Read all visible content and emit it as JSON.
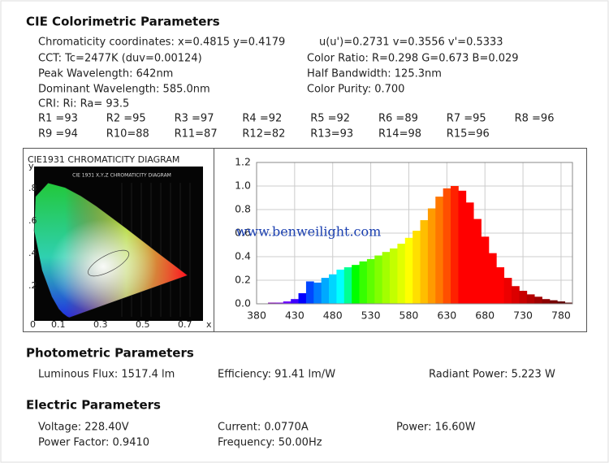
{
  "cie": {
    "title": "CIE Colorimetric Parameters",
    "left": [
      "Chromaticity coordinates: x=0.4815 y=0.4179",
      "CCT: Tc=2477K (duv=0.00124)",
      "Peak Wavelength: 642nm",
      "Dominant Wavelength: 585.0nm",
      "CRI: Ri: Ra= 93.5"
    ],
    "right": [
      "u(u')=0.2731 v=0.3556 v'=0.5333",
      "Color Ratio: R=0.298  G=0.673  B=0.029",
      "Half Bandwidth: 125.3nm",
      "Color Purity: 0.700"
    ],
    "ri": [
      "R1 =93",
      "R2 =95",
      "R3 =97",
      "R4 =92",
      "R5 =92",
      "R6 =89",
      "R7 =95",
      "R8 =96",
      "R9 =94",
      "R10=88",
      "R11=87",
      "R12=82",
      "R13=93",
      "R14=98",
      "R15=96"
    ]
  },
  "chart_data": [
    {
      "type": "chromaticity",
      "title": "CIE1931 CHROMATICITY DIAGRAM",
      "subtitle": "CIE 1931 X,Y,Z CHROMATICITY DIAGRAM",
      "xlabel": "x",
      "ylabel": "y",
      "xlim": [
        0,
        0.8
      ],
      "ylim": [
        0,
        0.9
      ],
      "xticks": [
        0,
        0.1,
        0.3,
        0.5,
        0.7
      ],
      "yticks": [
        {
          "value": 0.2,
          "label": ".2"
        },
        {
          "value": 0.4,
          "label": ".4"
        },
        {
          "value": 0.6,
          "label": ".6"
        },
        {
          "value": 0.8,
          "label": ".8"
        }
      ]
    },
    {
      "type": "spectrum",
      "annotation": "www.benweilight.com",
      "x": [
        380,
        390,
        400,
        410,
        420,
        430,
        440,
        450,
        460,
        470,
        480,
        490,
        500,
        510,
        520,
        530,
        540,
        550,
        560,
        570,
        580,
        590,
        600,
        610,
        620,
        630,
        640,
        650,
        660,
        670,
        680,
        690,
        700,
        710,
        720,
        730,
        740,
        750,
        760,
        770,
        780,
        790
      ],
      "values": [
        0.0,
        0.0,
        0.01,
        0.01,
        0.02,
        0.04,
        0.09,
        0.19,
        0.18,
        0.22,
        0.25,
        0.29,
        0.31,
        0.33,
        0.36,
        0.38,
        0.41,
        0.44,
        0.47,
        0.51,
        0.56,
        0.62,
        0.71,
        0.81,
        0.91,
        0.98,
        1.0,
        0.96,
        0.86,
        0.72,
        0.57,
        0.43,
        0.31,
        0.22,
        0.15,
        0.11,
        0.08,
        0.06,
        0.04,
        0.03,
        0.02,
        0.01
      ],
      "xlim": [
        380,
        795
      ],
      "ylim": [
        0,
        1.2
      ],
      "xticks": [
        380,
        430,
        480,
        530,
        580,
        630,
        680,
        730,
        780
      ],
      "yticks": [
        {
          "value": 0,
          "label": "0.0"
        },
        0.2,
        0.4,
        0.6,
        0.8,
        {
          "value": 1,
          "label": "1.0"
        },
        1.2
      ],
      "grid": true
    }
  ],
  "photometric": {
    "title": "Photometric Parameters",
    "items": [
      "Luminous Flux: 1517.4 lm",
      "Efficiency: 91.41 lm/W",
      "Radiant Power: 5.223 W"
    ]
  },
  "electric": {
    "title": "Electric Parameters",
    "items": [
      "Voltage: 228.40V",
      "Current: 0.0770A",
      "Power: 16.60W",
      "Power Factor: 0.9410",
      "Frequency: 50.00Hz"
    ]
  }
}
